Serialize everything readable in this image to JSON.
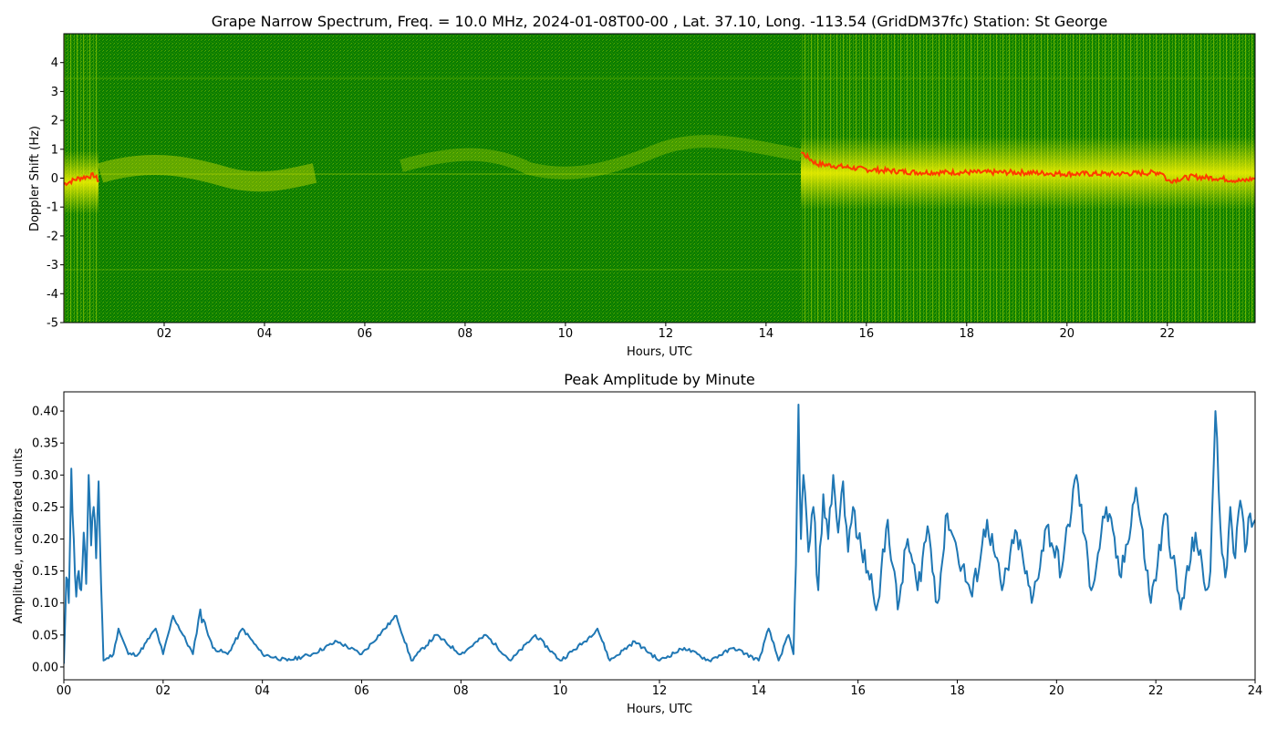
{
  "chart_data": [
    {
      "type": "heatmap",
      "title": "Grape Narrow Spectrum, Freq. = 10.0 MHz, 2024-01-08T00-00 , Lat.  37.10, Long. -113.54 (GridDM37fc) Station: St George",
      "xlabel": "Hours, UTC",
      "ylabel": "Doppler Shift (Hz)",
      "xlim": [
        0,
        23.75
      ],
      "ylim": [
        -5,
        5
      ],
      "xticks": [
        "02",
        "04",
        "06",
        "08",
        "10",
        "12",
        "14",
        "16",
        "18",
        "20",
        "22"
      ],
      "yticks": [
        "-5",
        "-4",
        "-3",
        "-2",
        "-1",
        "0",
        "1",
        "2",
        "3",
        "4"
      ],
      "colors": {
        "background": "#0a7a00",
        "mid": "#7fbf00",
        "high": "#f0f000",
        "peak": "#ff3a00"
      },
      "peak_trace": {
        "x": [
          0.0,
          0.3,
          0.6,
          0.7,
          14.7,
          15.0,
          15.5,
          16.0,
          17.0,
          18.0,
          19.0,
          20.0,
          21.0,
          21.9,
          22.0,
          22.5,
          23.0,
          23.5,
          23.75
        ],
        "y": [
          -0.2,
          0.0,
          0.1,
          -0.1,
          0.9,
          0.5,
          0.4,
          0.3,
          0.2,
          0.2,
          0.2,
          0.15,
          0.15,
          0.2,
          -0.1,
          0.05,
          0.0,
          -0.1,
          0.0
        ]
      }
    },
    {
      "type": "line",
      "title": "Peak Amplitude by Minute",
      "xlabel": "Hours, UTC",
      "ylabel": "Amplitude, uncalibrated units",
      "xlim": [
        0,
        24
      ],
      "ylim": [
        -0.02,
        0.43
      ],
      "xticks": [
        "00",
        "02",
        "04",
        "06",
        "08",
        "10",
        "12",
        "14",
        "16",
        "18",
        "20",
        "22",
        "24"
      ],
      "yticks": [
        "0.00",
        "0.05",
        "0.10",
        "0.15",
        "0.20",
        "0.25",
        "0.30",
        "0.35",
        "0.40"
      ],
      "line_color": "#1f77b4",
      "series": [
        {
          "x": [
            0.0,
            0.05,
            0.1,
            0.15,
            0.2,
            0.25,
            0.3,
            0.35,
            0.4,
            0.45,
            0.5,
            0.55,
            0.6,
            0.65,
            0.7,
            0.75,
            0.8,
            1.0,
            1.1,
            1.3,
            1.5,
            1.85,
            2.0,
            2.2,
            2.6,
            2.75,
            3.0,
            3.3,
            3.6,
            4.0,
            4.5,
            5.0,
            5.5,
            6.0,
            6.7,
            7.0,
            7.5,
            8.0,
            8.5,
            9.0,
            9.5,
            10.0,
            10.5,
            10.75,
            11.0,
            11.5,
            12.0,
            12.5,
            13.0,
            13.5,
            14.0,
            14.2,
            14.4,
            14.6,
            14.7,
            14.75,
            14.8,
            14.85,
            14.9,
            15.0,
            15.1,
            15.2,
            15.3,
            15.4,
            15.5,
            15.6,
            15.7,
            15.8,
            15.9,
            16.0,
            16.2,
            16.4,
            16.6,
            16.8,
            17.0,
            17.2,
            17.4,
            17.6,
            17.8,
            18.0,
            18.3,
            18.6,
            18.9,
            19.2,
            19.5,
            19.8,
            20.1,
            20.4,
            20.7,
            21.0,
            21.3,
            21.6,
            21.9,
            22.2,
            22.5,
            22.8,
            23.0,
            23.1,
            23.2,
            23.3,
            23.4,
            23.5,
            23.6,
            23.7,
            23.8,
            23.9,
            24.0
          ],
          "values": [
            0.0,
            0.14,
            0.1,
            0.31,
            0.2,
            0.11,
            0.15,
            0.12,
            0.21,
            0.13,
            0.3,
            0.19,
            0.25,
            0.17,
            0.29,
            0.13,
            0.01,
            0.02,
            0.06,
            0.02,
            0.02,
            0.06,
            0.02,
            0.08,
            0.02,
            0.09,
            0.03,
            0.02,
            0.06,
            0.02,
            0.01,
            0.02,
            0.04,
            0.02,
            0.08,
            0.01,
            0.05,
            0.02,
            0.05,
            0.01,
            0.05,
            0.01,
            0.04,
            0.06,
            0.01,
            0.04,
            0.01,
            0.03,
            0.01,
            0.03,
            0.01,
            0.06,
            0.01,
            0.05,
            0.02,
            0.16,
            0.41,
            0.2,
            0.3,
            0.18,
            0.25,
            0.12,
            0.27,
            0.2,
            0.3,
            0.21,
            0.29,
            0.18,
            0.25,
            0.2,
            0.15,
            0.1,
            0.23,
            0.09,
            0.2,
            0.12,
            0.22,
            0.1,
            0.24,
            0.18,
            0.11,
            0.23,
            0.12,
            0.21,
            0.1,
            0.22,
            0.15,
            0.3,
            0.12,
            0.25,
            0.14,
            0.28,
            0.1,
            0.24,
            0.09,
            0.21,
            0.12,
            0.15,
            0.4,
            0.22,
            0.14,
            0.25,
            0.17,
            0.26,
            0.18,
            0.24,
            0.23
          ]
        }
      ]
    }
  ]
}
